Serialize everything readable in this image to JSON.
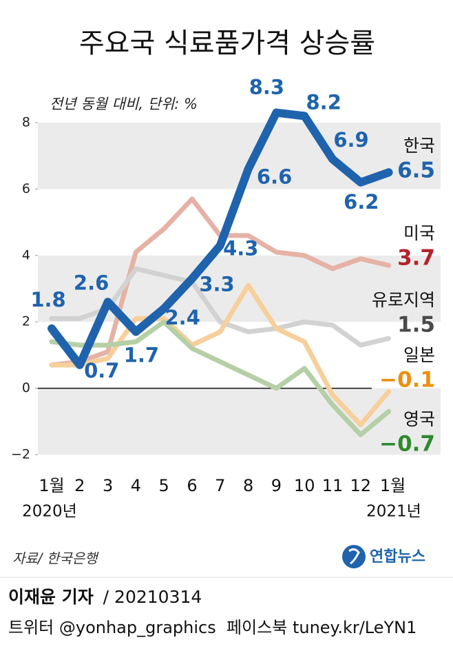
{
  "chart_data": {
    "type": "line",
    "title": "주요국 식료품가격 상승률",
    "subtitle": "전년 동월 대비, 단위: %",
    "categories": [
      "1월",
      "2",
      "3",
      "4",
      "5",
      "6",
      "7",
      "8",
      "9",
      "10",
      "11",
      "12",
      "1월"
    ],
    "year_labels": [
      "2020년",
      "2021년"
    ],
    "ylim": [
      -2,
      8
    ],
    "yticks": [
      8,
      6,
      4,
      2,
      0,
      {
        "value": -2,
        "label": "−2"
      }
    ],
    "bands": true,
    "series": [
      {
        "name": "미국",
        "color": "#e6b2a6",
        "label_color": "#b3242a",
        "values": [
          0.7,
          0.8,
          1.1,
          4.1,
          4.8,
          5.7,
          4.6,
          4.6,
          4.1,
          4.0,
          3.6,
          3.9,
          3.7
        ]
      },
      {
        "name": "유로지역",
        "color": "#d2d2d2",
        "label_color": "#4a4a4a",
        "values": [
          2.1,
          2.1,
          2.4,
          3.6,
          3.4,
          3.2,
          2.0,
          1.7,
          1.8,
          2.0,
          1.9,
          1.3,
          1.5
        ]
      },
      {
        "name": "일본",
        "color": "#f6cf9b",
        "label_color": "#ee8e0e",
        "values": [
          0.7,
          0.7,
          0.9,
          2.1,
          2.1,
          1.3,
          1.7,
          3.1,
          1.8,
          1.4,
          -0.2,
          -1.1,
          -0.1
        ],
        "end_label": "−0.1"
      },
      {
        "name": "영국",
        "color": "#b5cfa6",
        "label_color": "#2e8a2e",
        "values": [
          1.4,
          1.3,
          1.3,
          1.4,
          2.0,
          1.2,
          0.8,
          0.4,
          0.0,
          0.6,
          -0.5,
          -1.4,
          -0.7
        ],
        "end_label": "−0.7"
      },
      {
        "name": "한국",
        "color": "#1f63ad",
        "label_color": "#1f63ad",
        "values": [
          1.8,
          0.7,
          2.6,
          1.7,
          2.4,
          3.3,
          4.3,
          6.6,
          8.3,
          8.2,
          6.9,
          6.2,
          6.5
        ],
        "all_labels": true
      }
    ]
  },
  "source": "자료/ 한국은행",
  "logo": "연합뉴스",
  "reporter": "이재윤 기자",
  "date": "/ 20210314",
  "social": "트위터 @yonhap_graphics  페이스북 tuney.kr/LeYN1"
}
